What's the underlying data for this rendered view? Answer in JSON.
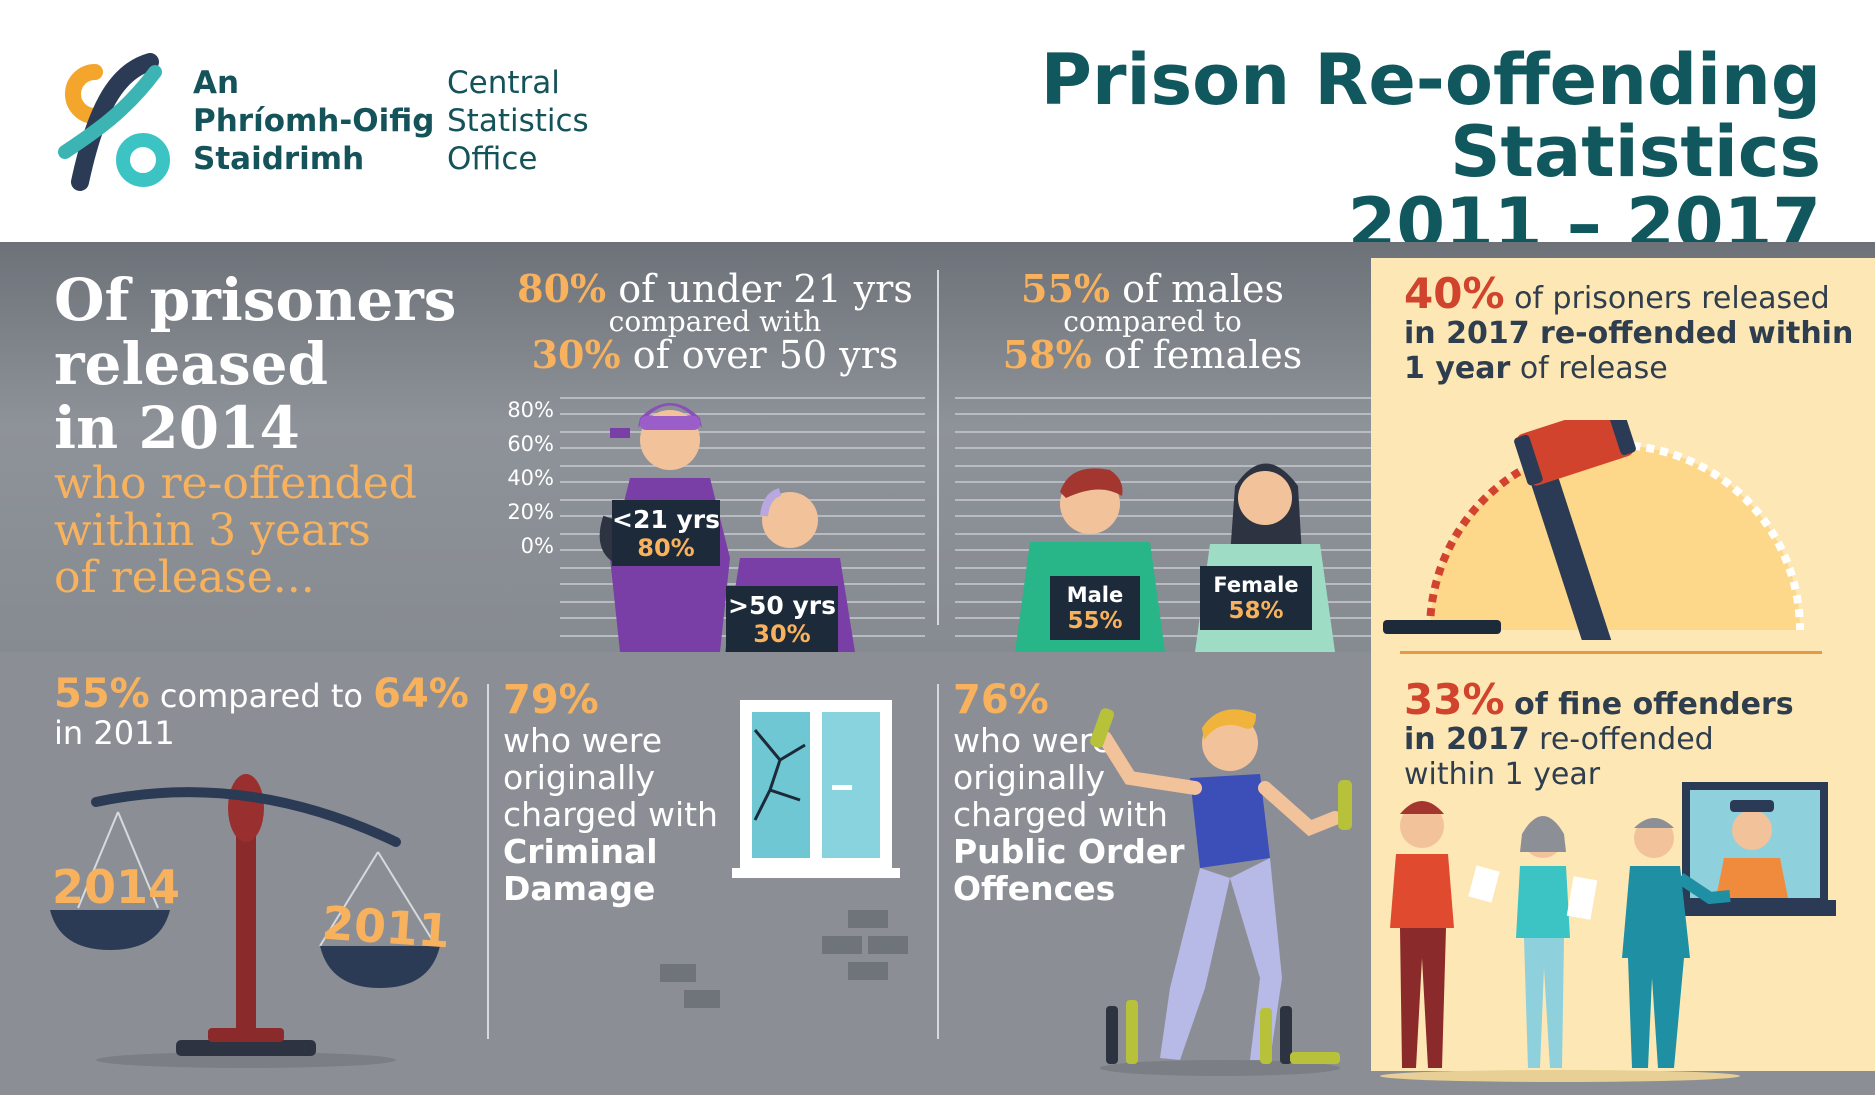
{
  "colors": {
    "teal_dark": "#15535a",
    "orange": "#f8b25d",
    "red": "#d2432d",
    "cream": "#fde7b4",
    "navy": "#1d2a39",
    "grey_band": "#8b8f95"
  },
  "header": {
    "logo_irish": [
      "An",
      "Phríomh-Oifig",
      "Staidrimh"
    ],
    "logo_english": [
      "Central",
      "Statistics",
      "Office"
    ],
    "title_line1": "Prison Re-offending Statistics",
    "title_line2": "2011 – 2017"
  },
  "intro": {
    "lines_white": [
      "Of prisoners",
      "released",
      "in 2014"
    ],
    "lines_orange": [
      "who re-offended",
      "within 3 years",
      "of release..."
    ]
  },
  "age": {
    "under21_pct": "80%",
    "under21_text": "of under 21 yrs",
    "compared": "compared with",
    "over50_pct": "30%",
    "over50_text": "of over 50 yrs",
    "height_ticks": [
      "80%",
      "60%",
      "40%",
      "20%",
      "0%"
    ],
    "under21_label": "<21 yrs",
    "under21_value": "80%",
    "over50_label": ">50 yrs",
    "over50_value": "30%"
  },
  "gender": {
    "male_pct": "55%",
    "male_text": "of males",
    "compared": "compared to",
    "female_pct": "58%",
    "female_text": "of females",
    "male_label": "Male",
    "male_value": "55%",
    "female_label": "Female",
    "female_value": "58%"
  },
  "released_2017": {
    "pct": "40%",
    "text1": "of prisoners released",
    "text2": "in 2017 re-offended within",
    "text3_bold": "1 year",
    "text3_rest": "of release",
    "gauge_fraction": 0.4
  },
  "trend": {
    "pct_2014": "55%",
    "compared": "compared to",
    "pct_2011": "64%",
    "year_text": "in 2011",
    "scale_left": "2014",
    "scale_right": "2011"
  },
  "criminal_damage": {
    "pct": "79%",
    "lines": [
      "who were",
      "originally",
      "charged with"
    ],
    "bold_lines": [
      "Criminal",
      "Damage"
    ]
  },
  "public_order": {
    "pct": "76%",
    "lines": [
      "who were",
      "originally",
      "charged with"
    ],
    "bold_lines": [
      "Public Order",
      "Offences"
    ]
  },
  "fine_offenders": {
    "pct": "33%",
    "text1_bold": "of fine offenders",
    "text2_bold": "in 2017",
    "text2_rest": "re-offended",
    "text3": "within 1 year"
  }
}
